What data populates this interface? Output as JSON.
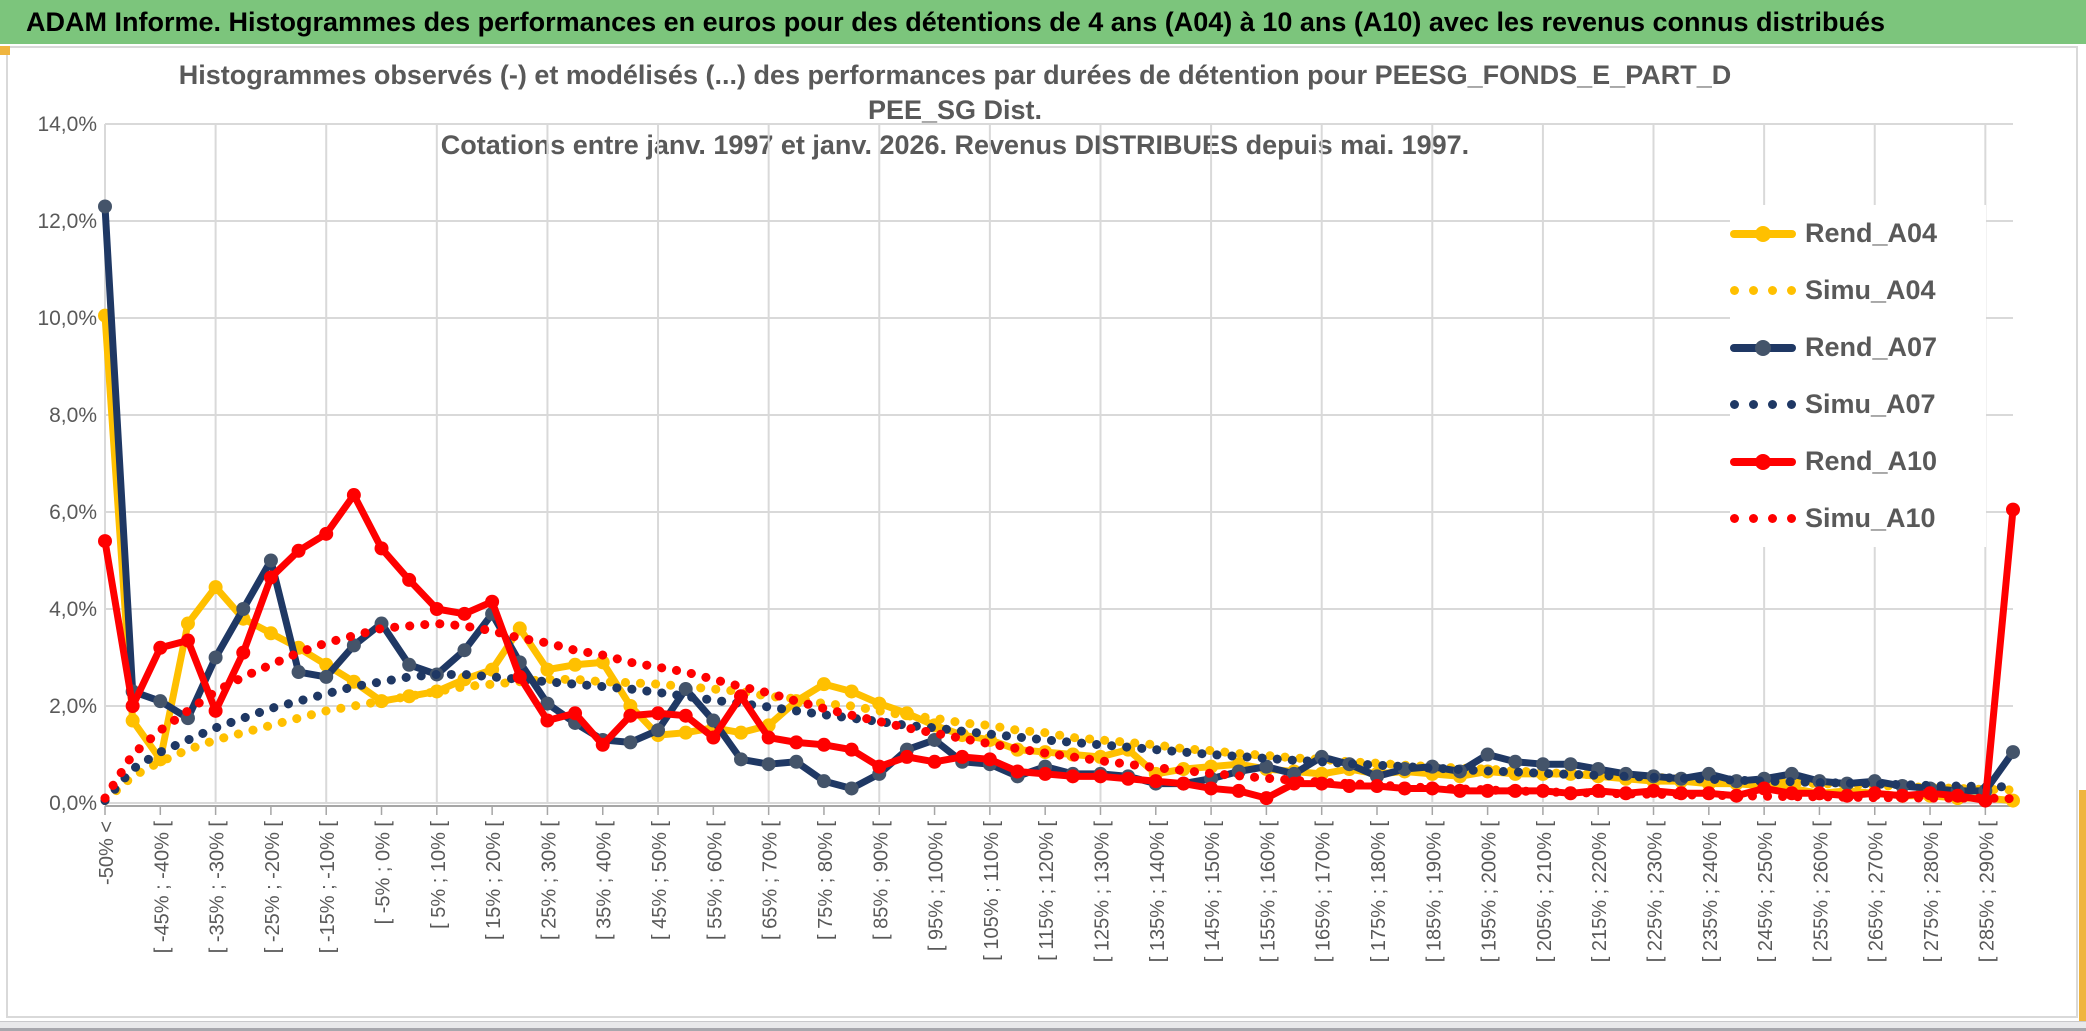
{
  "header": {
    "title": "ADAM Informe. Histogrammes des performances en euros pour des détentions de 4 ans (A04) à 10 ans (A10) avec les revenus connus distribués"
  },
  "chart": {
    "title_line1": "Histogrammes observés (-) et modélisés (...) des performances par durées de détention pour PEESG_FONDS_E_PART_D PEE_SG Dist.",
    "title_line2": "Cotations entre janv. 1997 et janv. 2026. Revenus DISTRIBUES depuis mai. 1997."
  },
  "theme": {
    "header_bg": "#7CC57C",
    "accent_gold": "#EFB53F",
    "text_gray": "#595959",
    "grid_color": "#D9D9D9",
    "axis_color": "#A6A6A6",
    "series_gold": "#FFC000",
    "series_navy": "#1F3864",
    "series_navy_marker": "#44546A",
    "series_red": "#FF0000"
  },
  "chart_data": {
    "type": "line",
    "title": "Histogrammes observés (-) et modélisés (...) des performances par durées de détention pour PEESG_FONDS_E_PART_D PEE_SG Dist. Cotations entre janv. 1997 et janv. 2026. Revenus DISTRIBUES depuis mai. 1997.",
    "xlabel": "",
    "ylabel": "",
    "ylim": [
      0,
      14
    ],
    "grid": true,
    "legend_position": "right",
    "points_per_series": 70,
    "label_step": 2,
    "y_tick_labels": [
      "0,0%",
      "2,0%",
      "4,0%",
      "6,0%",
      "8,0%",
      "10,0%",
      "12,0%",
      "14,0%"
    ],
    "x_labels": [
      "-50% <",
      "[ -45% ; -40% [",
      "[ -35% ; -30% [",
      "[ -25% ; -20% [",
      "[ -15% ; -10% [",
      "[ -5% ; 0% [",
      "[ 5% ; 10% [",
      "[ 15% ; 20% [",
      "[ 25% ; 30% [",
      "[ 35% ; 40% [",
      "[ 45% ; 50% [",
      "[ 55% ; 60% [",
      "[ 65% ; 70% [",
      "[ 75% ; 80% [",
      "[ 85% ; 90% [",
      "[ 95% ; 100% [",
      "[ 105% ; 110% [",
      "[ 115% ; 120% [",
      "[ 125% ; 130% [",
      "[ 135% ; 140% [",
      "[ 145% ; 150% [",
      "[ 155% ; 160% [",
      "[ 165% ; 170% [",
      "[ 175% ; 180% [",
      "[ 185% ; 190% [",
      "[ 195% ; 200% [",
      "[ 205% ; 210% [",
      "[ 215% ; 220% [",
      "[ 225% ; 230% [",
      "[ 235% ; 240% [",
      "[ 245% ; 250% [",
      "[ 255% ; 260% [",
      "[ 265% ; 270% [",
      "[ 275% ; 280% [",
      "[ 285% ; 290% ["
    ],
    "series": [
      {
        "name": "Rend_A04",
        "style": "solid",
        "color": "#FFC000",
        "marker": "#FFC000",
        "values": [
          10.05,
          1.7,
          0.9,
          3.7,
          4.45,
          3.8,
          3.5,
          3.2,
          2.85,
          2.5,
          2.1,
          2.2,
          2.3,
          2.55,
          2.75,
          3.6,
          2.75,
          2.85,
          2.9,
          2.0,
          1.4,
          1.45,
          1.55,
          1.45,
          1.6,
          2.1,
          2.45,
          2.3,
          2.05,
          1.85,
          1.6,
          1.4,
          1.3,
          1.1,
          1.05,
          1.0,
          0.95,
          1.1,
          0.6,
          0.7,
          0.75,
          0.8,
          0.7,
          0.65,
          0.6,
          0.7,
          0.6,
          0.65,
          0.6,
          0.55,
          0.65,
          0.6,
          0.6,
          0.6,
          0.55,
          0.5,
          0.45,
          0.45,
          0.4,
          0.4,
          0.35,
          0.3,
          0.2,
          0.25,
          0.2,
          0.15,
          0.15,
          0.1,
          0.1,
          0.05
        ]
      },
      {
        "name": "Simu_A04",
        "style": "dotted",
        "color": "#FFC000",
        "values": [
          0.05,
          0.55,
          0.85,
          1.1,
          1.3,
          1.45,
          1.6,
          1.75,
          1.9,
          2.0,
          2.1,
          2.2,
          2.3,
          2.4,
          2.45,
          2.5,
          2.55,
          2.55,
          2.5,
          2.48,
          2.45,
          2.4,
          2.35,
          2.3,
          2.2,
          2.15,
          2.05,
          2.0,
          1.9,
          1.8,
          1.75,
          1.65,
          1.6,
          1.5,
          1.45,
          1.35,
          1.3,
          1.25,
          1.2,
          1.12,
          1.08,
          1.02,
          0.98,
          0.93,
          0.9,
          0.85,
          0.82,
          0.78,
          0.75,
          0.72,
          0.7,
          0.66,
          0.63,
          0.6,
          0.58,
          0.55,
          0.53,
          0.5,
          0.48,
          0.46,
          0.44,
          0.42,
          0.4,
          0.38,
          0.36,
          0.34,
          0.32,
          0.3,
          0.28,
          0.27
        ]
      },
      {
        "name": "Rend_A07",
        "style": "solid",
        "color": "#1F3864",
        "marker": "#44546A",
        "values": [
          12.3,
          2.3,
          2.1,
          1.75,
          3.0,
          4.0,
          5.0,
          2.7,
          2.6,
          3.25,
          3.7,
          2.85,
          2.65,
          3.15,
          3.9,
          2.9,
          2.05,
          1.65,
          1.3,
          1.25,
          1.5,
          2.35,
          1.7,
          0.9,
          0.8,
          0.85,
          0.45,
          0.3,
          0.6,
          1.1,
          1.3,
          0.85,
          0.8,
          0.55,
          0.75,
          0.6,
          0.6,
          0.55,
          0.4,
          0.4,
          0.5,
          0.65,
          0.75,
          0.6,
          0.95,
          0.8,
          0.55,
          0.7,
          0.75,
          0.65,
          1.0,
          0.85,
          0.8,
          0.8,
          0.7,
          0.6,
          0.55,
          0.5,
          0.6,
          0.45,
          0.5,
          0.6,
          0.45,
          0.4,
          0.45,
          0.35,
          0.3,
          0.25,
          0.25,
          1.05
        ]
      },
      {
        "name": "Simu_A07",
        "style": "dotted",
        "color": "#1F3864",
        "values": [
          0.05,
          0.7,
          1.05,
          1.3,
          1.55,
          1.75,
          1.95,
          2.1,
          2.25,
          2.4,
          2.5,
          2.6,
          2.65,
          2.65,
          2.6,
          2.55,
          2.5,
          2.45,
          2.4,
          2.35,
          2.28,
          2.2,
          2.12,
          2.05,
          1.98,
          1.9,
          1.82,
          1.75,
          1.68,
          1.6,
          1.55,
          1.48,
          1.42,
          1.36,
          1.3,
          1.25,
          1.2,
          1.15,
          1.1,
          1.05,
          1.0,
          0.96,
          0.92,
          0.88,
          0.85,
          0.81,
          0.78,
          0.75,
          0.72,
          0.69,
          0.66,
          0.64,
          0.61,
          0.59,
          0.57,
          0.55,
          0.53,
          0.51,
          0.49,
          0.47,
          0.45,
          0.44,
          0.42,
          0.41,
          0.39,
          0.38,
          0.36,
          0.35,
          0.34,
          0.33
        ]
      },
      {
        "name": "Rend_A10",
        "style": "solid",
        "color": "#FF0000",
        "marker": "#FF0000",
        "values": [
          5.4,
          2.0,
          3.2,
          3.35,
          1.9,
          3.1,
          4.65,
          5.2,
          5.55,
          6.35,
          5.25,
          4.6,
          4.0,
          3.9,
          4.15,
          2.6,
          1.7,
          1.85,
          1.2,
          1.8,
          1.85,
          1.8,
          1.35,
          2.2,
          1.35,
          1.25,
          1.2,
          1.1,
          0.75,
          0.95,
          0.85,
          0.95,
          0.9,
          0.65,
          0.6,
          0.55,
          0.55,
          0.5,
          0.45,
          0.4,
          0.3,
          0.25,
          0.1,
          0.4,
          0.4,
          0.35,
          0.35,
          0.3,
          0.3,
          0.25,
          0.25,
          0.25,
          0.25,
          0.2,
          0.25,
          0.2,
          0.25,
          0.2,
          0.2,
          0.15,
          0.3,
          0.2,
          0.2,
          0.15,
          0.2,
          0.15,
          0.2,
          0.15,
          0.05,
          6.05
        ]
      },
      {
        "name": "Simu_A10",
        "style": "dotted",
        "color": "#FF0000",
        "values": [
          0.1,
          1.0,
          1.5,
          1.9,
          2.3,
          2.6,
          2.85,
          3.1,
          3.3,
          3.45,
          3.6,
          3.65,
          3.7,
          3.65,
          3.55,
          3.4,
          3.3,
          3.15,
          3.05,
          2.9,
          2.8,
          2.7,
          2.55,
          2.4,
          2.27,
          2.1,
          1.95,
          1.81,
          1.68,
          1.55,
          1.44,
          1.33,
          1.22,
          1.12,
          1.03,
          0.95,
          0.87,
          0.8,
          0.73,
          0.67,
          0.61,
          0.56,
          0.51,
          0.47,
          0.43,
          0.4,
          0.37,
          0.34,
          0.31,
          0.29,
          0.27,
          0.25,
          0.23,
          0.22,
          0.2,
          0.19,
          0.18,
          0.17,
          0.16,
          0.15,
          0.14,
          0.13,
          0.13,
          0.12,
          0.11,
          0.11,
          0.1,
          0.1,
          0.1,
          0.09
        ]
      }
    ]
  }
}
